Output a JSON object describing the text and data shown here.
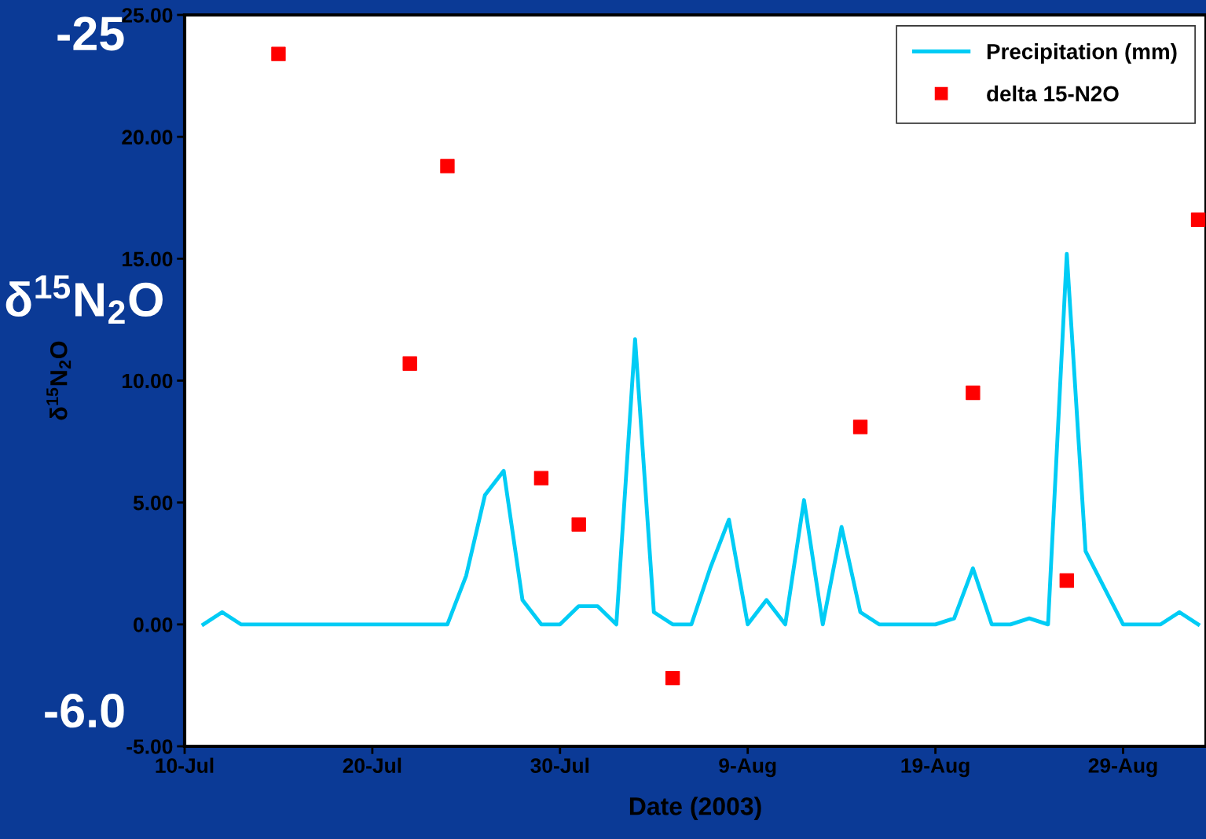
{
  "chart_data": {
    "type": "line",
    "xlabel": "Date (2003)",
    "ylabel": "δ$^{15}$N$_{2}$O",
    "annotations": [
      "-25",
      "δ$^{15}$N$_{2}$O",
      "-6.0"
    ],
    "xlim": [
      "2003-07-10",
      "2003-09-02T10:00"
    ],
    "xticks": [
      {
        "value": "2003-07-10",
        "label": "10-Jul"
      },
      {
        "value": "2003-07-20",
        "label": "20-Jul"
      },
      {
        "value": "2003-07-30",
        "label": "30-Jul"
      },
      {
        "value": "2003-08-09",
        "label": "9-Aug"
      },
      {
        "value": "2003-08-19",
        "label": "19-Aug"
      },
      {
        "value": "2003-08-29",
        "label": "29-Aug"
      }
    ],
    "ylim": [
      -5,
      25
    ],
    "yticks": [
      {
        "value": -5,
        "label": "-5.00"
      },
      {
        "value": 0,
        "label": "0.00"
      },
      {
        "value": 5,
        "label": "5.00"
      },
      {
        "value": 10,
        "label": "10.00"
      },
      {
        "value": 15,
        "label": "15.00"
      },
      {
        "value": 20,
        "label": "20.00"
      },
      {
        "value": 25,
        "label": "25.00"
      }
    ],
    "grid": false,
    "legend": "top right",
    "series": [
      {
        "name": "Precipitation (mm)",
        "type": "line",
        "color": "#00ccf5",
        "marker": "none",
        "line_style": "solid",
        "x": [
          "2003-07-11",
          "2003-07-12",
          "2003-07-13",
          "2003-07-14",
          "2003-07-15",
          "2003-07-16",
          "2003-07-17",
          "2003-07-18",
          "2003-07-19",
          "2003-07-20",
          "2003-07-21",
          "2003-07-22",
          "2003-07-23",
          "2003-07-24",
          "2003-07-25",
          "2003-07-26",
          "2003-07-27",
          "2003-07-28",
          "2003-07-29",
          "2003-07-30",
          "2003-07-31",
          "2003-08-01",
          "2003-08-02",
          "2003-08-03",
          "2003-08-04",
          "2003-08-05",
          "2003-08-06",
          "2003-08-07",
          "2003-08-08",
          "2003-08-09",
          "2003-08-10",
          "2003-08-11",
          "2003-08-12",
          "2003-08-13",
          "2003-08-14",
          "2003-08-15",
          "2003-08-16",
          "2003-08-17",
          "2003-08-18",
          "2003-08-19",
          "2003-08-20",
          "2003-08-21",
          "2003-08-22",
          "2003-08-23",
          "2003-08-24",
          "2003-08-25",
          "2003-08-26",
          "2003-08-27",
          "2003-08-28",
          "2003-08-29",
          "2003-08-30",
          "2003-08-31",
          "2003-09-01",
          "2003-09-02"
        ],
        "values": [
          0,
          0.5,
          0,
          0,
          0,
          0,
          0,
          0,
          0,
          0,
          0,
          0,
          0,
          0,
          2.0,
          5.3,
          6.3,
          1.0,
          0,
          0,
          0.75,
          0.75,
          0,
          11.7,
          0.5,
          0,
          0,
          2.3,
          4.3,
          0,
          1.0,
          0,
          5.1,
          0,
          4.0,
          0.5,
          0,
          0,
          0,
          0,
          0.25,
          2.3,
          0,
          0,
          0.25,
          0,
          15.2,
          3.0,
          1.5,
          0,
          0,
          0,
          0.5,
          0
        ]
      },
      {
        "name": "delta 15-N2O",
        "type": "scatter",
        "color": "#ff0000",
        "marker": "square",
        "x": [
          "2003-07-15",
          "2003-07-22",
          "2003-07-24",
          "2003-07-29",
          "2003-07-31",
          "2003-08-05",
          "2003-08-15",
          "2003-08-21",
          "2003-08-26",
          "2003-09-02"
        ],
        "values": [
          23.4,
          10.7,
          18.8,
          6.0,
          4.1,
          -2.2,
          8.1,
          9.5,
          1.8,
          16.6
        ]
      }
    ]
  }
}
